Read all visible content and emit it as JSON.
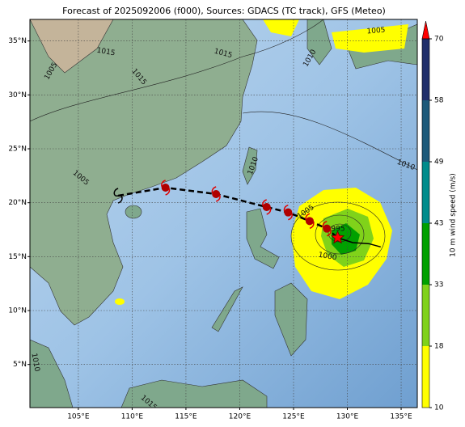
{
  "map": {
    "title": "Forecast of 2025092006 (f000), Sources: GDACS (TC track), GFS (Meteo)",
    "xlim": [
      100.5,
      136.5
    ],
    "ylim": [
      1,
      37
    ],
    "xticks": [
      {
        "value": 105,
        "label": "105°E"
      },
      {
        "value": 110,
        "label": "110°E"
      },
      {
        "value": 115,
        "label": "115°E"
      },
      {
        "value": 120,
        "label": "120°E"
      },
      {
        "value": 125,
        "label": "125°E"
      },
      {
        "value": 130,
        "label": "130°E"
      },
      {
        "value": 135,
        "label": "135°E"
      }
    ],
    "yticks": [
      {
        "value": 5,
        "label": "5°N"
      },
      {
        "value": 10,
        "label": "10°N"
      },
      {
        "value": 15,
        "label": "15°N"
      },
      {
        "value": 20,
        "label": "20°N"
      },
      {
        "value": 25,
        "label": "25°N"
      },
      {
        "value": 30,
        "label": "30°N"
      },
      {
        "value": 35,
        "label": "35°N"
      }
    ],
    "grid": true,
    "forecast_track": {
      "color": "#b00000",
      "lon": [
        108.7,
        113.1,
        117.8,
        122.5,
        124.5,
        126.5,
        128.1
      ],
      "lat": [
        20.65,
        21.4,
        20.8,
        19.6,
        19.1,
        18.3,
        17.6
      ]
    },
    "current_position": {
      "color": "#ff0000",
      "lon": 129.1,
      "lat": 16.75
    },
    "past_track": {
      "color": "#000000",
      "lon": [
        129.1,
        130.5,
        132.0,
        133.1
      ],
      "lat": [
        16.75,
        16.3,
        16.2,
        15.9
      ]
    },
    "contour_labels": [
      "1015",
      "1015",
      "1015",
      "1005",
      "1010",
      "1005",
      "1010",
      "1010",
      "1005",
      "1000",
      "1005",
      "1010",
      "1015",
      "995"
    ],
    "colorbar": {
      "label": "10 m wind speed (m/s)",
      "bounds": [
        10,
        18,
        33,
        43,
        49,
        58,
        70
      ],
      "colors": [
        "#ffff00",
        "#80d21a",
        "#00a000",
        "#008c8c",
        "#1d5a7a",
        "#1f2e6a"
      ],
      "extend_color": "#ff0000"
    }
  }
}
